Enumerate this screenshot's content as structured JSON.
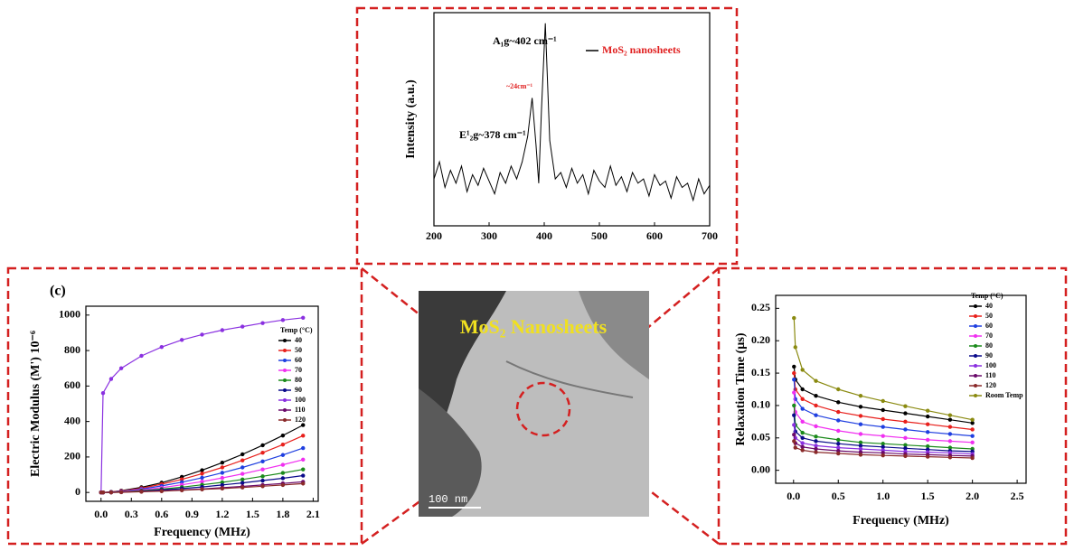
{
  "chart_data": [
    {
      "type": "line",
      "xlabel": "",
      "ylabel": "Intensity (a.u.)",
      "x": [
        200,
        210,
        220,
        230,
        240,
        250,
        260,
        270,
        280,
        290,
        300,
        310,
        320,
        330,
        340,
        350,
        360,
        370,
        378,
        385,
        390,
        395,
        402,
        410,
        420,
        430,
        440,
        450,
        460,
        470,
        480,
        490,
        500,
        510,
        520,
        530,
        540,
        550,
        560,
        570,
        580,
        590,
        600,
        610,
        620,
        630,
        640,
        650,
        660,
        670,
        680,
        690,
        700
      ],
      "series": [
        {
          "name": "MoS₂ nanosheets",
          "color": "#000000",
          "values": [
            22,
            30,
            18,
            26,
            20,
            28,
            16,
            24,
            19,
            27,
            21,
            15,
            25,
            20,
            28,
            22,
            30,
            42,
            60,
            38,
            20,
            55,
            95,
            40,
            22,
            25,
            18,
            27,
            20,
            24,
            15,
            26,
            21,
            18,
            28,
            19,
            23,
            16,
            25,
            20,
            22,
            14,
            24,
            19,
            21,
            13,
            23,
            18,
            20,
            12,
            22,
            15,
            19
          ]
        }
      ],
      "legend_text_color": "#e02020",
      "annotations": [
        "A₁g~402 cm⁻¹",
        "E¹₂g~378 cm⁻¹",
        "~24cm⁻¹"
      ],
      "annotation_colors": [
        "#000000",
        "#000000",
        "#e02020"
      ],
      "xlim": [
        200,
        700
      ],
      "ylim": [
        0,
        100
      ],
      "xticks": [
        200,
        300,
        400,
        500,
        600,
        700
      ],
      "markers": false
    },
    {
      "type": "line",
      "panel_label": "(c)",
      "xlabel": "Frequency (MHz)",
      "ylabel": "Electric Modulus (M') 10⁻⁶",
      "legend_title": "Temp (°C)",
      "x": [
        0,
        0.02,
        0.1,
        0.2,
        0.4,
        0.6,
        0.8,
        1.0,
        1.2,
        1.4,
        1.6,
        1.8,
        2.0
      ],
      "series": [
        {
          "name": "40",
          "color": "#000000",
          "values": [
            0,
            0,
            3,
            10,
            29,
            55,
            88,
            125,
            168,
            215,
            266,
            321,
            380
          ]
        },
        {
          "name": "50",
          "color": "#e8201c",
          "values": [
            0,
            0,
            3,
            8,
            24,
            47,
            74,
            106,
            141,
            181,
            224,
            270,
            320
          ]
        },
        {
          "name": "60",
          "color": "#1f3fe0",
          "values": [
            0,
            0,
            2,
            6,
            19,
            37,
            58,
            83,
            111,
            141,
            175,
            211,
            250
          ]
        },
        {
          "name": "70",
          "color": "#f030f0",
          "values": [
            0,
            0,
            1,
            5,
            14,
            27,
            43,
            61,
            82,
            105,
            130,
            156,
            185
          ]
        },
        {
          "name": "80",
          "color": "#1a8a1a",
          "values": [
            0,
            0,
            1,
            3,
            10,
            19,
            30,
            43,
            57,
            73,
            91,
            110,
            130
          ]
        },
        {
          "name": "90",
          "color": "#0a0a8a",
          "values": [
            0,
            0,
            1,
            2,
            7,
            14,
            22,
            31,
            42,
            54,
            67,
            80,
            95
          ]
        },
        {
          "name": "100",
          "color": "#8a30e0",
          "values": [
            0,
            560,
            640,
            700,
            770,
            820,
            860,
            890,
            915,
            935,
            955,
            972,
            985
          ]
        },
        {
          "name": "110",
          "color": "#6a0a6a",
          "values": [
            0,
            0,
            0,
            2,
            5,
            9,
            14,
            20,
            27,
            34,
            42,
            51,
            60
          ]
        },
        {
          "name": "120",
          "color": "#8a2a2a",
          "values": [
            0,
            0,
            0,
            1,
            4,
            7,
            12,
            17,
            22,
            28,
            35,
            42,
            50
          ]
        }
      ],
      "xlim": [
        -0.15,
        2.15
      ],
      "ylim": [
        -50,
        1050
      ],
      "xticks": [
        {
          "value": 0,
          "label": "0.0"
        },
        0.3,
        0.6,
        0.9,
        1.2,
        1.5,
        1.8,
        2.1
      ],
      "yticks": [
        0,
        200,
        400,
        600,
        800,
        1000
      ],
      "markers": true
    },
    {
      "type": "line",
      "xlabel": "Frequency (MHz)",
      "ylabel": "Relaxation Time (µs)",
      "legend_title": "Temp (°C)",
      "x": [
        0.005,
        0.02,
        0.1,
        0.25,
        0.5,
        0.75,
        1.0,
        1.25,
        1.5,
        1.75,
        2.0
      ],
      "series": [
        {
          "name": "40",
          "color": "#000000",
          "values": [
            0.16,
            0.14,
            0.125,
            0.115,
            0.105,
            0.098,
            0.093,
            0.088,
            0.083,
            0.078,
            0.073
          ]
        },
        {
          "name": "50",
          "color": "#e8201c",
          "values": [
            0.15,
            0.125,
            0.11,
            0.1,
            0.09,
            0.084,
            0.079,
            0.075,
            0.071,
            0.067,
            0.063
          ]
        },
        {
          "name": "60",
          "color": "#1f3fe0",
          "values": [
            0.14,
            0.11,
            0.095,
            0.085,
            0.077,
            0.071,
            0.067,
            0.063,
            0.059,
            0.056,
            0.053
          ]
        },
        {
          "name": "70",
          "color": "#f030f0",
          "values": [
            0.12,
            0.09,
            0.075,
            0.068,
            0.061,
            0.056,
            0.053,
            0.05,
            0.047,
            0.045,
            0.043
          ]
        },
        {
          "name": "80",
          "color": "#1a8a1a",
          "values": [
            0.1,
            0.07,
            0.058,
            0.052,
            0.047,
            0.043,
            0.041,
            0.039,
            0.037,
            0.035,
            0.033
          ]
        },
        {
          "name": "90",
          "color": "#0a0a8a",
          "values": [
            0.085,
            0.06,
            0.05,
            0.045,
            0.041,
            0.038,
            0.036,
            0.034,
            0.032,
            0.03,
            0.029
          ]
        },
        {
          "name": "100",
          "color": "#8a30e0",
          "values": [
            0.07,
            0.05,
            0.042,
            0.038,
            0.035,
            0.033,
            0.031,
            0.029,
            0.028,
            0.027,
            0.025
          ]
        },
        {
          "name": "110",
          "color": "#6a0a6a",
          "values": [
            0.055,
            0.042,
            0.036,
            0.033,
            0.03,
            0.028,
            0.027,
            0.025,
            0.024,
            0.023,
            0.022
          ]
        },
        {
          "name": "120",
          "color": "#8a2a2a",
          "values": [
            0.045,
            0.035,
            0.031,
            0.028,
            0.026,
            0.024,
            0.023,
            0.022,
            0.021,
            0.02,
            0.019
          ]
        },
        {
          "name": "Room Temp",
          "color": "#8a8a10",
          "values": [
            0.235,
            0.19,
            0.155,
            0.138,
            0.125,
            0.115,
            0.107,
            0.099,
            0.092,
            0.085,
            0.078
          ]
        }
      ],
      "xlim": [
        -0.2,
        2.6
      ],
      "ylim": [
        -0.02,
        0.27
      ],
      "xticks": [
        {
          "value": 0,
          "label": "0.0"
        },
        0.5,
        {
          "value": 1,
          "label": "1.0"
        },
        1.5,
        {
          "value": 2,
          "label": "2.0"
        },
        2.5
      ],
      "yticks": [
        {
          "value": 0,
          "label": "0.00"
        },
        0.05,
        {
          "value": 0.1,
          "label": "0.10"
        },
        0.15,
        {
          "value": 0.2,
          "label": "0.20"
        },
        0.25
      ],
      "markers": true
    }
  ],
  "image": {
    "title": "MoS₂ Nanosheets",
    "scale_bar": "100 nm"
  }
}
